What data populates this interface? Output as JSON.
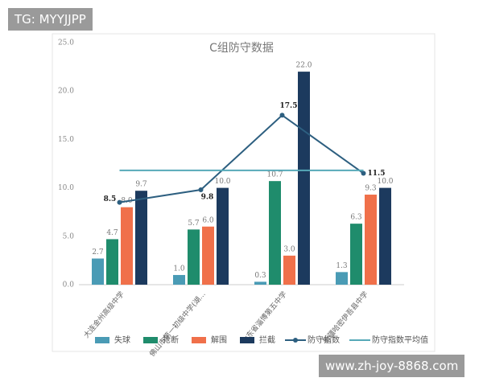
{
  "chart_data": {
    "type": "bar",
    "title": "C组防守数据",
    "categories": [
      "大连金州高级中学",
      "佛山市第一初级中学(湖...",
      "山东省淄博第五中学",
      "新疆哈密伊吾县中学"
    ],
    "ylim": [
      0,
      25
    ],
    "yticks": [
      {
        "value": 0,
        "label": "0.0"
      },
      {
        "value": 5,
        "label": "5.0"
      },
      {
        "value": 10,
        "label": "10.0"
      },
      {
        "value": 15,
        "label": "15.0"
      },
      {
        "value": 20,
        "label": "20.0"
      },
      {
        "value": 25,
        "label": "25.0"
      }
    ],
    "series": [
      {
        "name": "失球",
        "type": "bar",
        "color": "#4a9bb5",
        "values": [
          2.7,
          1.0,
          0.3,
          1.3
        ],
        "value_labels": [
          "2.7",
          "1.0",
          "0.3",
          "1.3"
        ]
      },
      {
        "name": "抢断",
        "type": "bar",
        "color": "#1f8c6c",
        "values": [
          4.7,
          5.7,
          10.7,
          6.3
        ],
        "value_labels": [
          "4.7",
          "5.7",
          "10.7",
          "6.3"
        ]
      },
      {
        "name": "解围",
        "type": "bar",
        "color": "#f0704a",
        "values": [
          8.0,
          6.0,
          3.0,
          9.3
        ],
        "value_labels": [
          "8.0",
          "6.0",
          "3.0",
          "9.3"
        ]
      },
      {
        "name": "拦截",
        "type": "bar",
        "color": "#1c3a5e",
        "values": [
          9.7,
          10.0,
          22.0,
          10.0
        ],
        "value_labels": [
          "9.7",
          "10.0",
          "22.0",
          "10.0"
        ]
      },
      {
        "name": "防守指数",
        "type": "line",
        "color": "#2d5f80",
        "values": [
          8.5,
          9.8,
          17.5,
          11.5
        ]
      },
      {
        "name": "防守指数平均值",
        "type": "flat",
        "color": "#56a9b8",
        "values": [
          11.8,
          11.8,
          11.8,
          11.8
        ]
      }
    ]
  },
  "overlays": {
    "tag": "TG: MYYJJPP",
    "url": "www.zh-joy-8868.com"
  }
}
